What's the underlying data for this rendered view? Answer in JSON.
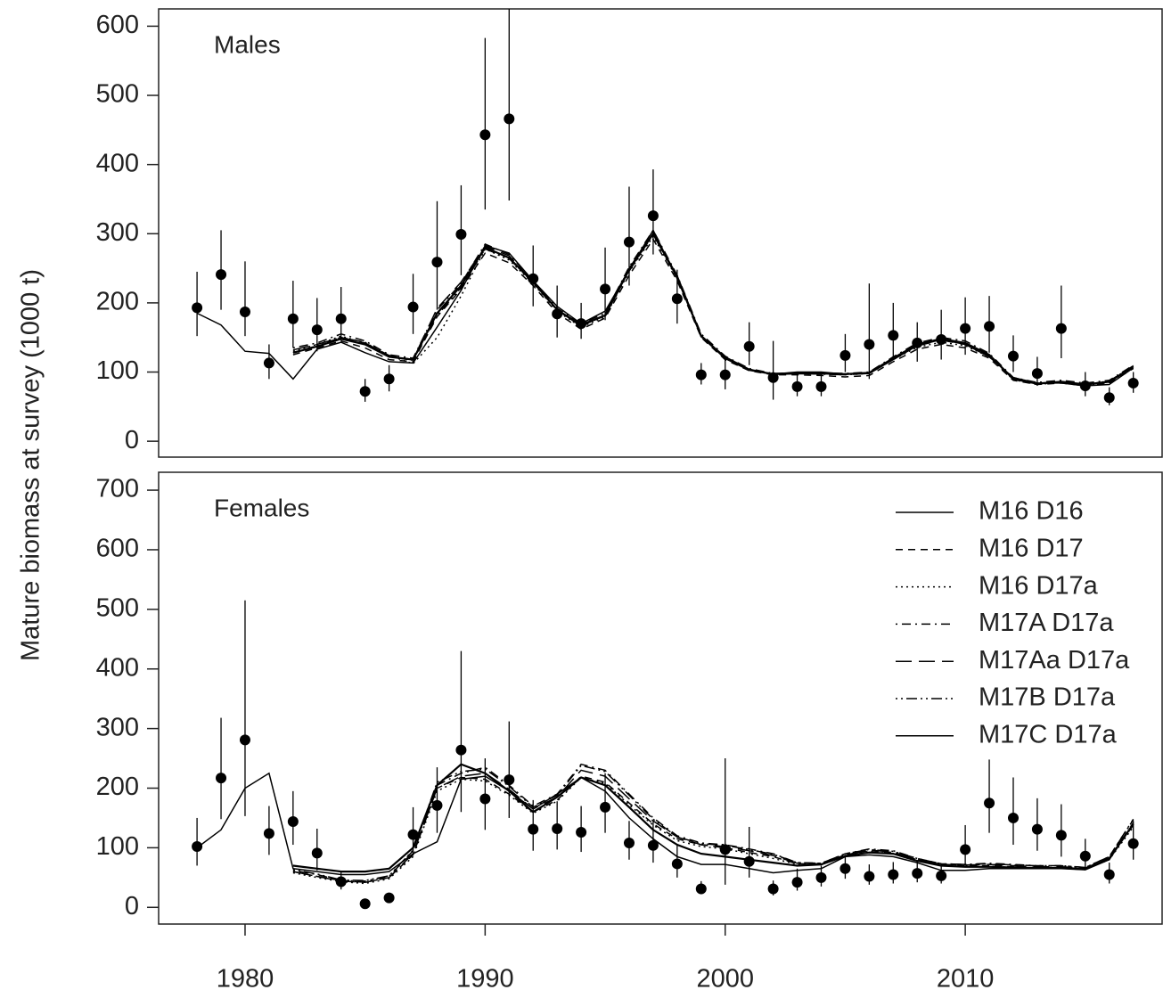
{
  "chart_data": [
    {
      "type": "line",
      "title": "Males",
      "ylabel": "Mature biomass at survey (1000 t)",
      "x": [
        1978,
        1979,
        1980,
        1981,
        1982,
        1983,
        1984,
        1985,
        1986,
        1987,
        1988,
        1989,
        1990,
        1991,
        1992,
        1993,
        1994,
        1995,
        1996,
        1997,
        1998,
        1999,
        2000,
        2001,
        2002,
        2003,
        2004,
        2005,
        2006,
        2007,
        2008,
        2009,
        2010,
        2011,
        2012,
        2013,
        2014,
        2015,
        2016,
        2017
      ],
      "xlim": [
        1976.4,
        2018.2
      ],
      "ylim": [
        -23,
        625
      ],
      "yticks": [
        0,
        100,
        200,
        300,
        400,
        500,
        600
      ],
      "observations": {
        "color": "#000000",
        "values": [
          193,
          241,
          187,
          113,
          177,
          161,
          177,
          72,
          90,
          194,
          259,
          299,
          443,
          466,
          235,
          184,
          170,
          220,
          288,
          326,
          206,
          96,
          96,
          137,
          92,
          79,
          79,
          124,
          140,
          153,
          142,
          147,
          163,
          166,
          123,
          98,
          163,
          80,
          63,
          84
        ],
        "ci_low": [
          152,
          190,
          152,
          90,
          135,
          130,
          145,
          57,
          72,
          155,
          190,
          240,
          335,
          348,
          195,
          150,
          148,
          175,
          225,
          270,
          170,
          82,
          75,
          110,
          60,
          65,
          65,
          100,
          90,
          120,
          115,
          118,
          125,
          128,
          100,
          80,
          120,
          65,
          52,
          70
        ],
        "ci_high": [
          245,
          305,
          260,
          140,
          232,
          207,
          223,
          90,
          110,
          242,
          347,
          370,
          583,
          625,
          283,
          225,
          200,
          280,
          368,
          393,
          248,
          113,
          122,
          172,
          145,
          98,
          98,
          155,
          228,
          200,
          172,
          190,
          208,
          210,
          153,
          122,
          225,
          100,
          78,
          100
        ]
      },
      "series": [
        {
          "color": "#000000",
          "dash": "solid",
          "values": [
            185,
            168,
            130,
            127,
            90,
            133,
            143,
            128,
            115,
            113,
            165,
            218,
            283,
            272,
            232,
            195,
            170,
            188,
            248,
            305,
            235,
            152,
            122,
            104,
            97,
            100,
            100,
            97,
            98,
            118,
            138,
            147,
            140,
            122,
            92,
            84,
            84,
            80,
            82,
            106
          ]
        },
        {
          "color": "#000000",
          "dash": "dashed",
          "values": [
            null,
            null,
            null,
            null,
            125,
            135,
            145,
            135,
            118,
            115,
            180,
            220,
            272,
            258,
            225,
            185,
            162,
            178,
            240,
            292,
            232,
            150,
            118,
            102,
            96,
            96,
            95,
            93,
            95,
            115,
            133,
            140,
            135,
            120,
            88,
            82,
            84,
            80,
            84,
            105
          ]
        },
        {
          "color": "#000000",
          "dash": "dotted",
          "values": [
            null,
            null,
            null,
            null,
            130,
            140,
            152,
            142,
            124,
            112,
            150,
            210,
            278,
            262,
            228,
            188,
            165,
            180,
            245,
            296,
            235,
            152,
            121,
            104,
            97,
            98,
            97,
            96,
            98,
            118,
            136,
            143,
            138,
            122,
            89,
            82,
            85,
            81,
            85,
            107
          ]
        },
        {
          "color": "#000000",
          "dash": "dashdot",
          "values": [
            null,
            null,
            null,
            null,
            135,
            142,
            155,
            145,
            125,
            120,
            190,
            228,
            285,
            270,
            232,
            192,
            170,
            185,
            252,
            305,
            240,
            155,
            123,
            105,
            98,
            99,
            99,
            98,
            100,
            122,
            142,
            150,
            145,
            127,
            92,
            85,
            88,
            84,
            88,
            110
          ]
        },
        {
          "color": "#000000",
          "dash": "longdash",
          "values": [
            null,
            null,
            null,
            null,
            132,
            140,
            150,
            142,
            124,
            118,
            192,
            230,
            282,
            268,
            230,
            190,
            166,
            183,
            250,
            302,
            238,
            153,
            121,
            104,
            97,
            98,
            97,
            96,
            98,
            119,
            138,
            146,
            140,
            124,
            90,
            84,
            86,
            82,
            86,
            108
          ]
        },
        {
          "color": "#000000",
          "dash": "dashdotdot",
          "values": [
            null,
            null,
            null,
            null,
            128,
            138,
            150,
            143,
            122,
            117,
            182,
            222,
            278,
            264,
            229,
            189,
            167,
            181,
            246,
            299,
            236,
            151,
            120,
            103,
            97,
            98,
            98,
            97,
            99,
            120,
            140,
            147,
            142,
            125,
            90,
            83,
            86,
            82,
            87,
            109
          ]
        },
        {
          "color": "#000000",
          "dash": "solid",
          "values": [
            null,
            null,
            null,
            null,
            128,
            137,
            148,
            140,
            122,
            118,
            185,
            225,
            280,
            265,
            230,
            190,
            168,
            182,
            248,
            300,
            238,
            152,
            120,
            103,
            97,
            98,
            98,
            97,
            99,
            120,
            140,
            148,
            142,
            125,
            90,
            83,
            86,
            82,
            86,
            108
          ]
        }
      ]
    },
    {
      "type": "line",
      "title": "Females",
      "legend": "upper right",
      "x": [
        1978,
        1979,
        1980,
        1981,
        1982,
        1983,
        1984,
        1985,
        1986,
        1987,
        1988,
        1989,
        1990,
        1991,
        1992,
        1993,
        1994,
        1995,
        1996,
        1997,
        1998,
        1999,
        2000,
        2001,
        2002,
        2003,
        2004,
        2005,
        2006,
        2007,
        2008,
        2009,
        2010,
        2011,
        2012,
        2013,
        2014,
        2015,
        2016,
        2017
      ],
      "xlim": [
        1976.4,
        2018.2
      ],
      "xticks": [
        1980,
        1990,
        2000,
        2010
      ],
      "ylim": [
        -28,
        730
      ],
      "yticks": [
        0,
        100,
        200,
        300,
        400,
        500,
        600,
        700
      ],
      "observations": {
        "color": "#000000",
        "values": [
          102,
          217,
          281,
          124,
          144,
          91,
          43,
          6,
          16,
          122,
          171,
          264,
          182,
          214,
          131,
          132,
          126,
          168,
          108,
          104,
          73,
          31,
          97,
          77,
          31,
          42,
          50,
          65,
          52,
          55,
          57,
          53,
          97,
          175,
          150,
          131,
          121,
          86,
          55,
          107
        ],
        "ci_low": [
          70,
          148,
          153,
          88,
          105,
          62,
          30,
          4,
          12,
          88,
          125,
          160,
          130,
          150,
          95,
          97,
          93,
          125,
          80,
          75,
          50,
          22,
          38,
          50,
          20,
          28,
          35,
          48,
          38,
          40,
          42,
          40,
          70,
          125,
          105,
          95,
          85,
          65,
          40,
          80
        ],
        "ci_high": [
          150,
          318,
          515,
          170,
          195,
          132,
          60,
          9,
          21,
          168,
          235,
          430,
          250,
          312,
          180,
          178,
          170,
          225,
          145,
          145,
          105,
          44,
          250,
          135,
          45,
          65,
          70,
          88,
          72,
          76,
          78,
          72,
          138,
          248,
          218,
          183,
          173,
          115,
          75,
          145
        ]
      },
      "series": [
        {
          "name": "M16 D16",
          "color": "#000000",
          "dash": "solid",
          "values": [
            100,
            130,
            200,
            225,
            65,
            60,
            55,
            55,
            60,
            90,
            110,
            215,
            220,
            195,
            165,
            190,
            218,
            195,
            150,
            115,
            85,
            72,
            72,
            65,
            58,
            62,
            65,
            85,
            88,
            85,
            75,
            62,
            62,
            65,
            65,
            65,
            65,
            63,
            80,
            140
          ]
        },
        {
          "name": "M16 D17",
          "color": "#000000",
          "dash": "dashed",
          "values": [
            null,
            null,
            null,
            null,
            60,
            52,
            45,
            42,
            50,
            88,
            200,
            218,
            215,
            190,
            160,
            180,
            220,
            210,
            175,
            140,
            115,
            105,
            100,
            92,
            85,
            73,
            73,
            88,
            95,
            92,
            80,
            72,
            70,
            70,
            68,
            67,
            67,
            65,
            82,
            138
          ]
        },
        {
          "name": "M16 D17a",
          "color": "#000000",
          "dash": "dotted",
          "values": [
            null,
            null,
            null,
            null,
            58,
            50,
            43,
            40,
            48,
            85,
            195,
            215,
            212,
            188,
            158,
            178,
            218,
            208,
            172,
            138,
            112,
            102,
            98,
            90,
            82,
            72,
            72,
            87,
            94,
            90,
            78,
            70,
            69,
            69,
            67,
            66,
            66,
            64,
            80,
            135
          ]
        },
        {
          "name": "M17A D17a",
          "color": "#000000",
          "dash": "dashdot",
          "values": [
            null,
            null,
            null,
            null,
            62,
            55,
            45,
            44,
            52,
            95,
            205,
            225,
            235,
            205,
            170,
            190,
            240,
            230,
            190,
            150,
            120,
            108,
            105,
            98,
            90,
            75,
            74,
            90,
            98,
            95,
            82,
            73,
            72,
            74,
            72,
            70,
            70,
            67,
            85,
            148
          ]
        },
        {
          "name": "M17Aa D17a",
          "color": "#000000",
          "dash": "longdash",
          "values": [
            null,
            null,
            null,
            null,
            60,
            52,
            44,
            42,
            50,
            90,
            200,
            220,
            225,
            198,
            165,
            185,
            230,
            220,
            182,
            145,
            118,
            105,
            102,
            95,
            87,
            74,
            73,
            88,
            96,
            93,
            80,
            72,
            71,
            72,
            70,
            68,
            68,
            66,
            83,
            142
          ]
        },
        {
          "name": "M17B D17a",
          "color": "#000000",
          "dash": "dashdotdot",
          "values": [
            null,
            null,
            null,
            null,
            63,
            56,
            46,
            45,
            53,
            96,
            210,
            228,
            232,
            203,
            168,
            188,
            238,
            228,
            188,
            148,
            118,
            107,
            104,
            97,
            89,
            75,
            74,
            90,
            97,
            94,
            82,
            73,
            72,
            73,
            71,
            70,
            70,
            67,
            85,
            147
          ]
        },
        {
          "name": "M17C D17a",
          "color": "#000000",
          "dash": "solid",
          "values": [
            null,
            null,
            null,
            null,
            70,
            65,
            60,
            60,
            65,
            100,
            205,
            240,
            225,
            195,
            160,
            185,
            218,
            205,
            168,
            130,
            105,
            90,
            85,
            80,
            75,
            70,
            72,
            86,
            92,
            90,
            78,
            70,
            68,
            68,
            67,
            66,
            66,
            64,
            82,
            140
          ]
        }
      ]
    }
  ]
}
